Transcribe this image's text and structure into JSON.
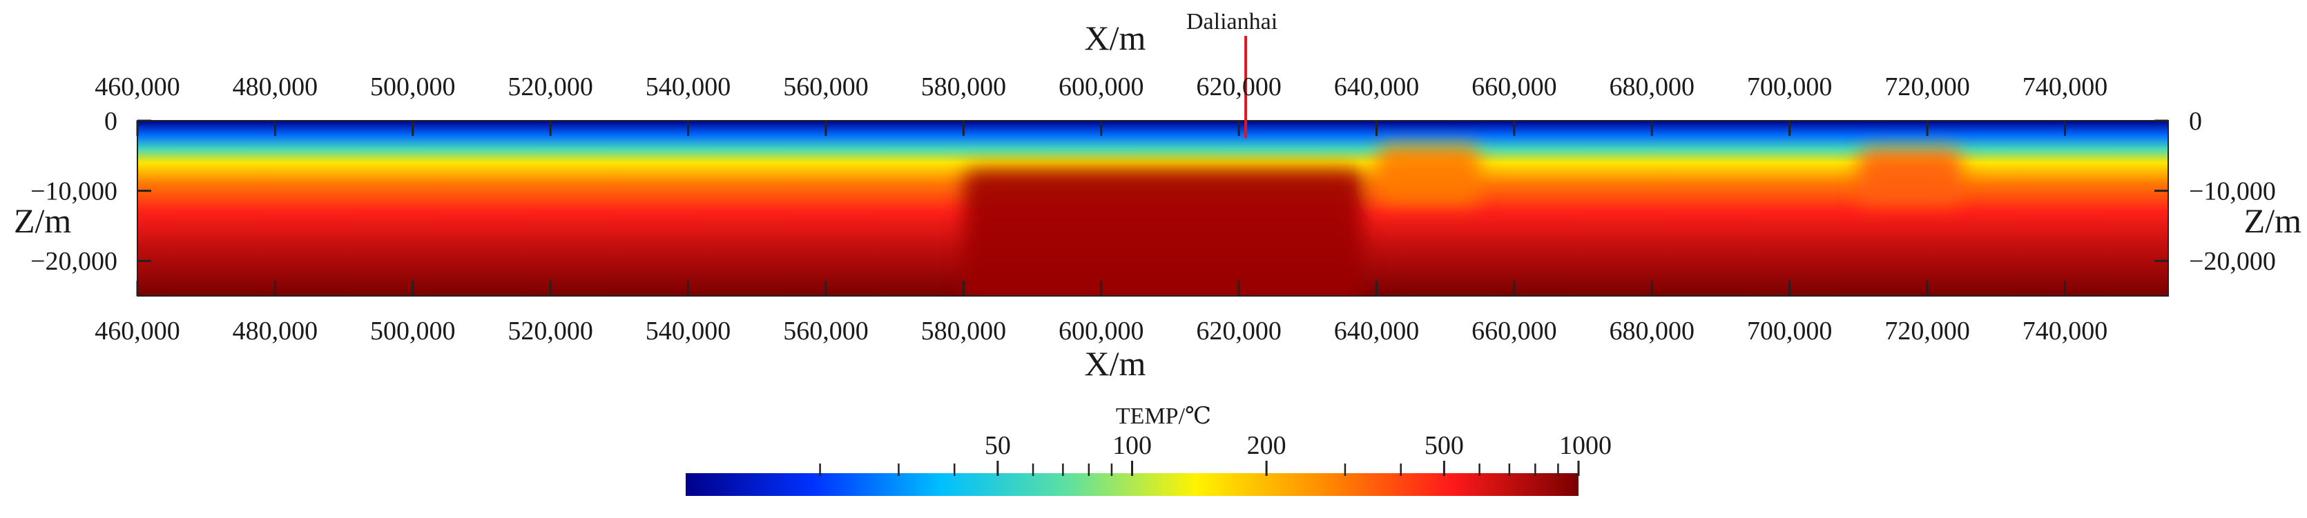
{
  "chart_data": {
    "type": "heatmap",
    "title": "",
    "xlabel": "X/m",
    "ylabel": "Z/m",
    "xlim": [
      460000,
      755000
    ],
    "ylim": [
      -25000,
      0
    ],
    "x_ticks": [
      460000,
      480000,
      500000,
      520000,
      540000,
      560000,
      580000,
      600000,
      620000,
      640000,
      660000,
      680000,
      700000,
      720000,
      740000
    ],
    "x_tick_labels": [
      "460,000",
      "480,000",
      "500,000",
      "520,000",
      "540,000",
      "560,000",
      "580,000",
      "600,000",
      "620,000",
      "640,000",
      "660,000",
      "680,000",
      "700,000",
      "720,000",
      "740,000"
    ],
    "y_ticks": [
      0,
      -10000,
      -20000
    ],
    "y_tick_labels": [
      "0",
      "−10,000",
      "−20,000"
    ],
    "well": {
      "name": "Dalianhai",
      "x": 621000,
      "z_bottom": -2500,
      "color": "#e8141c"
    },
    "field_description": {
      "background_profile": [
        [
          0,
          0
        ],
        [
          -2000,
          25
        ],
        [
          -4000,
          60
        ],
        [
          -6000,
          150
        ],
        [
          -9000,
          300
        ],
        [
          -13000,
          500
        ],
        [
          -18000,
          700
        ],
        [
          -25000,
          1000
        ]
      ],
      "anomalies": [
        {
          "x_range": [
            580000,
            638000
          ],
          "z_range": [
            -7000,
            -25000
          ],
          "temp": 850
        },
        {
          "x_range": [
            640000,
            655000
          ],
          "z_range": [
            -3500,
            -9000
          ],
          "temp": 300
        },
        {
          "x_range": [
            710000,
            725000
          ],
          "z_range": [
            -4000,
            -9000
          ],
          "temp": 350
        }
      ]
    },
    "colorbar": {
      "title": "TEMP/℃",
      "scale": "log",
      "range": [
        10,
        1000
      ],
      "ticks": [
        50,
        100,
        200,
        500,
        1000
      ],
      "minor_ticks": [
        20,
        30,
        40,
        60,
        70,
        80,
        90,
        300,
        400,
        600,
        700,
        800,
        900
      ],
      "colors": [
        "#00008b",
        "#0032ff",
        "#00bfff",
        "#5fe0a0",
        "#fff200",
        "#ff8c00",
        "#ff1a1a",
        "#7a0000"
      ]
    }
  }
}
